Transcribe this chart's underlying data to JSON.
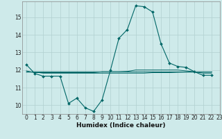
{
  "title": "",
  "xlabel": "Humidex (Indice chaleur)",
  "ylabel": "",
  "background_color": "#ceeaea",
  "grid_color": "#b0d0d0",
  "line_color": "#006666",
  "xlim": [
    -0.5,
    23
  ],
  "ylim": [
    9.5,
    15.9
  ],
  "xticks": [
    0,
    1,
    2,
    3,
    4,
    5,
    6,
    7,
    8,
    9,
    10,
    11,
    12,
    13,
    14,
    15,
    16,
    17,
    18,
    19,
    20,
    21,
    22,
    23
  ],
  "yticks": [
    10,
    11,
    12,
    13,
    14,
    15
  ],
  "series": [
    [
      12.3,
      11.8,
      11.65,
      11.65,
      11.65,
      10.1,
      10.4,
      9.85,
      9.65,
      10.3,
      12.0,
      13.8,
      14.3,
      15.65,
      15.6,
      15.3,
      13.5,
      12.4,
      12.2,
      12.15,
      11.9,
      11.7,
      11.7
    ],
    [
      11.95,
      11.85,
      11.85,
      11.85,
      11.85,
      11.85,
      11.85,
      11.85,
      11.85,
      11.9,
      11.9,
      11.9,
      11.92,
      12.0,
      12.0,
      12.0,
      12.0,
      12.0,
      12.0,
      11.95,
      11.9,
      11.82,
      11.82
    ],
    [
      11.9,
      11.9,
      11.9,
      11.9,
      11.9,
      11.9,
      11.9,
      11.9,
      11.9,
      11.9,
      11.9,
      11.9,
      11.9,
      11.9,
      11.9,
      11.9,
      11.9,
      11.9,
      11.9,
      11.9,
      11.9,
      11.9,
      11.9
    ],
    [
      11.88,
      11.88,
      11.82,
      11.82,
      11.82,
      11.82,
      11.82,
      11.82,
      11.82,
      11.82,
      11.82,
      11.82,
      11.82,
      11.82,
      11.82,
      11.85,
      11.85,
      11.85,
      11.87,
      11.88,
      11.88,
      11.88,
      11.88
    ]
  ],
  "x_values": [
    0,
    1,
    2,
    3,
    4,
    5,
    6,
    7,
    8,
    9,
    10,
    11,
    12,
    13,
    14,
    15,
    16,
    17,
    18,
    19,
    20,
    21,
    22
  ]
}
